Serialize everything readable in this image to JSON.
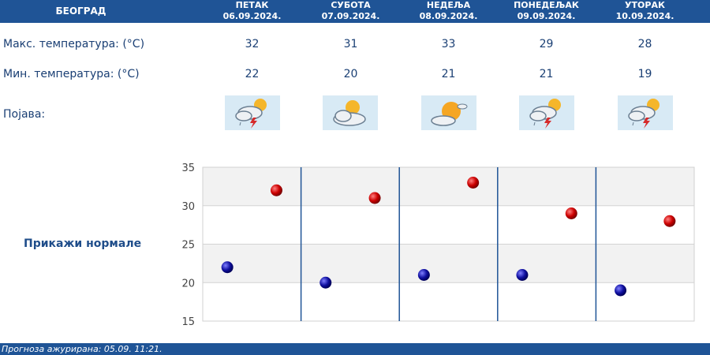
{
  "header": {
    "city": "БЕОГРАД"
  },
  "days": [
    {
      "name": "ПЕТАК",
      "date": "06.09.2024.",
      "max": "32",
      "min": "22",
      "icon": "storm-sun-icon"
    },
    {
      "name": "СУБОТА",
      "date": "07.09.2024.",
      "max": "31",
      "min": "20",
      "icon": "partly-cloudy-icon"
    },
    {
      "name": "НЕДЕЉА",
      "date": "08.09.2024.",
      "max": "33",
      "min": "21",
      "icon": "mostly-sunny-icon"
    },
    {
      "name": "ПОНЕДЕЉАК",
      "date": "09.09.2024.",
      "max": "29",
      "min": "21",
      "icon": "storm-sun-icon"
    },
    {
      "name": "УТОРАК",
      "date": "10.09.2024.",
      "max": "28",
      "min": "19",
      "icon": "storm-sun-icon"
    }
  ],
  "labels": {
    "max": "Макс. температура: (°C)",
    "min": "Мин. температура: (°C)",
    "phenomenon": "Појава:"
  },
  "normals_link": "Прикажи нормале",
  "footer": "Прогноза ажурирана:  05.09.  11:21.",
  "colors": {
    "header": "#1f5496",
    "max_dot": "#cc0000",
    "min_dot": "#1010a0",
    "separator": "#1f5496"
  },
  "chart_data": {
    "type": "scatter",
    "categories": [
      "06.09.2024.",
      "07.09.2024.",
      "08.09.2024.",
      "09.09.2024.",
      "10.09.2024."
    ],
    "series": [
      {
        "values": [
          32,
          31,
          33,
          29,
          28
        ]
      },
      {
        "values": [
          22,
          20,
          21,
          21,
          19
        ]
      }
    ],
    "yticks": [
      "15",
      "20",
      "25",
      "30",
      "35"
    ],
    "ylim": [
      15,
      35
    ],
    "grid": true
  }
}
